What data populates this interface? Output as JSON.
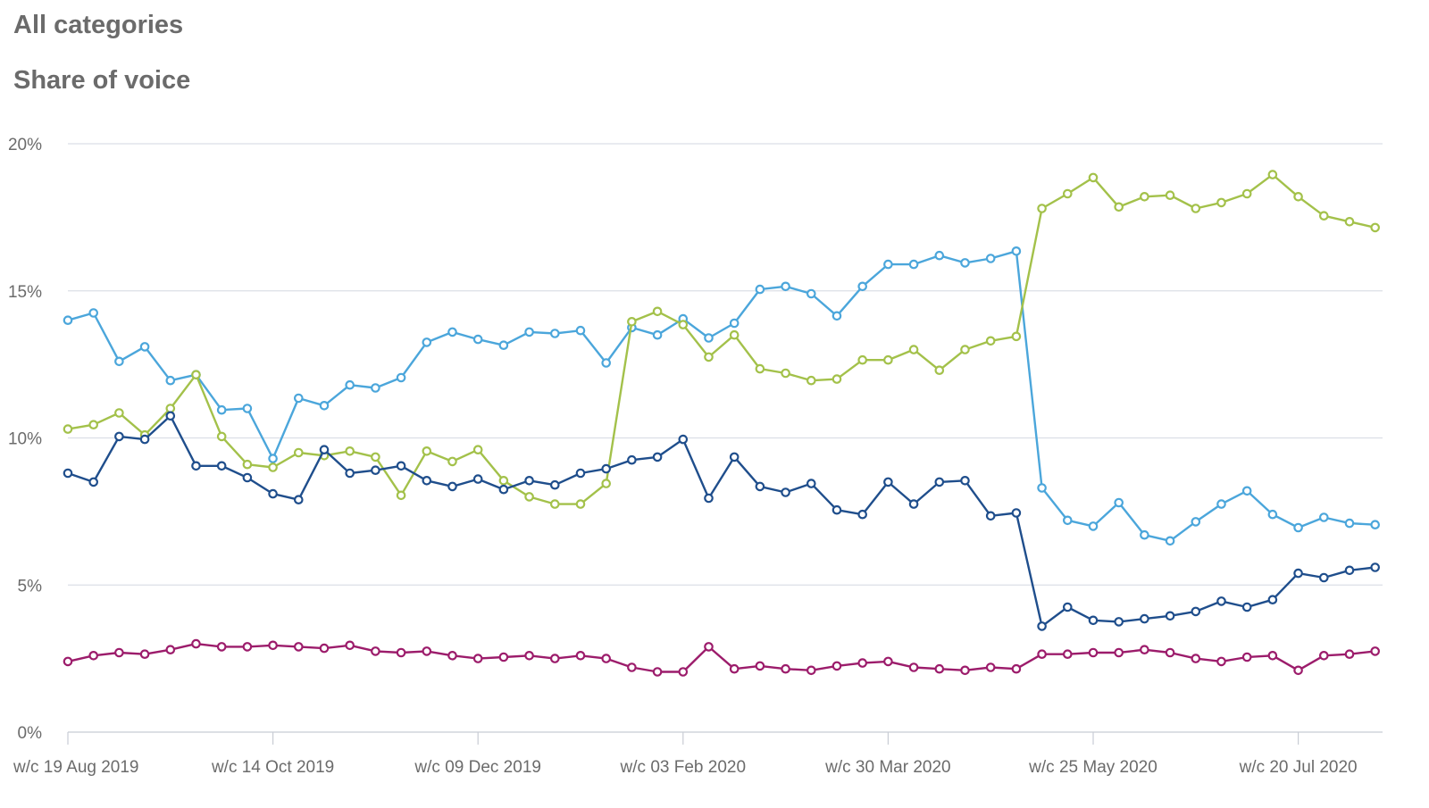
{
  "header": {
    "title": "All categories"
  },
  "chart_data": {
    "type": "line",
    "title": "Share of voice",
    "xlabel": "",
    "ylabel": "",
    "ylim": [
      0,
      20
    ],
    "y_ticks": [
      "0%",
      "5%",
      "10%",
      "15%",
      "20%"
    ],
    "x_tick_labels": [
      "w/c 19 Aug 2019",
      "w/c 14 Oct 2019",
      "w/c 09 Dec 2019",
      "w/c 03 Feb 2020",
      "w/c 30 Mar 2020",
      "w/c 25 May 2020",
      "w/c 20 Jul 2020"
    ],
    "x": [
      "2019-08-19",
      "2019-08-26",
      "2019-09-02",
      "2019-09-09",
      "2019-09-16",
      "2019-09-23",
      "2019-09-30",
      "2019-10-07",
      "2019-10-14",
      "2019-10-21",
      "2019-10-28",
      "2019-11-04",
      "2019-11-11",
      "2019-11-18",
      "2019-11-25",
      "2019-12-02",
      "2019-12-09",
      "2019-12-16",
      "2019-12-23",
      "2019-12-30",
      "2020-01-06",
      "2020-01-13",
      "2020-01-20",
      "2020-01-27",
      "2020-02-03",
      "2020-02-10",
      "2020-02-17",
      "2020-02-24",
      "2020-03-02",
      "2020-03-09",
      "2020-03-16",
      "2020-03-23",
      "2020-03-30",
      "2020-04-06",
      "2020-04-13",
      "2020-04-20",
      "2020-04-27",
      "2020-05-04",
      "2020-05-11",
      "2020-05-18",
      "2020-05-25",
      "2020-06-01",
      "2020-06-08",
      "2020-06-15",
      "2020-06-22",
      "2020-06-29",
      "2020-07-06",
      "2020-07-13",
      "2020-07-20",
      "2020-07-27",
      "2020-08-03",
      "2020-08-10"
    ],
    "grid": true,
    "series": [
      {
        "color": "#4ba6db",
        "values": [
          14.0,
          14.25,
          12.6,
          13.1,
          11.95,
          12.15,
          10.95,
          11.0,
          9.3,
          11.35,
          11.1,
          11.8,
          11.7,
          12.05,
          13.25,
          13.6,
          13.35,
          13.15,
          13.6,
          13.55,
          13.65,
          12.55,
          13.75,
          13.5,
          14.05,
          13.4,
          13.9,
          15.05,
          15.15,
          14.9,
          14.15,
          15.15,
          15.9,
          15.9,
          16.2,
          15.95,
          16.1,
          16.35,
          8.3,
          7.2,
          7.0,
          7.8,
          6.7,
          6.5,
          7.15,
          7.75,
          8.2,
          7.4,
          6.95,
          7.3,
          7.1,
          7.05
        ]
      },
      {
        "color": "#a3c14a",
        "values": [
          10.3,
          10.45,
          10.85,
          10.1,
          11.0,
          12.15,
          10.05,
          9.1,
          9.0,
          9.5,
          9.4,
          9.55,
          9.35,
          8.05,
          9.55,
          9.2,
          9.6,
          8.55,
          8.0,
          7.75,
          7.75,
          8.45,
          13.95,
          14.3,
          13.85,
          12.75,
          13.5,
          12.35,
          12.2,
          11.95,
          12.0,
          12.65,
          12.65,
          13.0,
          12.3,
          13.0,
          13.3,
          13.45,
          17.8,
          18.3,
          18.85,
          17.85,
          18.2,
          18.25,
          17.8,
          18.0,
          18.3,
          18.95,
          18.2,
          17.55,
          17.35,
          17.15
        ]
      },
      {
        "color": "#1f4e8c",
        "values": [
          8.8,
          8.5,
          10.05,
          9.95,
          10.75,
          9.05,
          9.05,
          8.65,
          8.1,
          7.9,
          9.6,
          8.8,
          8.9,
          9.05,
          8.55,
          8.35,
          8.6,
          8.25,
          8.55,
          8.4,
          8.8,
          8.95,
          9.25,
          9.35,
          9.95,
          7.95,
          9.35,
          8.35,
          8.15,
          8.45,
          7.55,
          7.4,
          8.5,
          7.75,
          8.5,
          8.55,
          7.35,
          7.45,
          3.6,
          4.25,
          3.8,
          3.75,
          3.85,
          3.95,
          4.1,
          4.45,
          4.25,
          4.5,
          5.4,
          5.25,
          5.5,
          5.6
        ]
      },
      {
        "color": "#9c1c6b",
        "values": [
          2.4,
          2.6,
          2.7,
          2.65,
          2.8,
          3.0,
          2.9,
          2.9,
          2.95,
          2.9,
          2.85,
          2.95,
          2.75,
          2.7,
          2.75,
          2.6,
          2.5,
          2.55,
          2.6,
          2.5,
          2.6,
          2.5,
          2.2,
          2.05,
          2.05,
          2.9,
          2.15,
          2.25,
          2.15,
          2.1,
          2.25,
          2.35,
          2.4,
          2.2,
          2.15,
          2.1,
          2.2,
          2.15,
          2.65,
          2.65,
          2.7,
          2.7,
          2.8,
          2.7,
          2.5,
          2.4,
          2.55,
          2.6,
          2.1,
          2.6,
          2.65,
          2.75
        ]
      }
    ]
  }
}
